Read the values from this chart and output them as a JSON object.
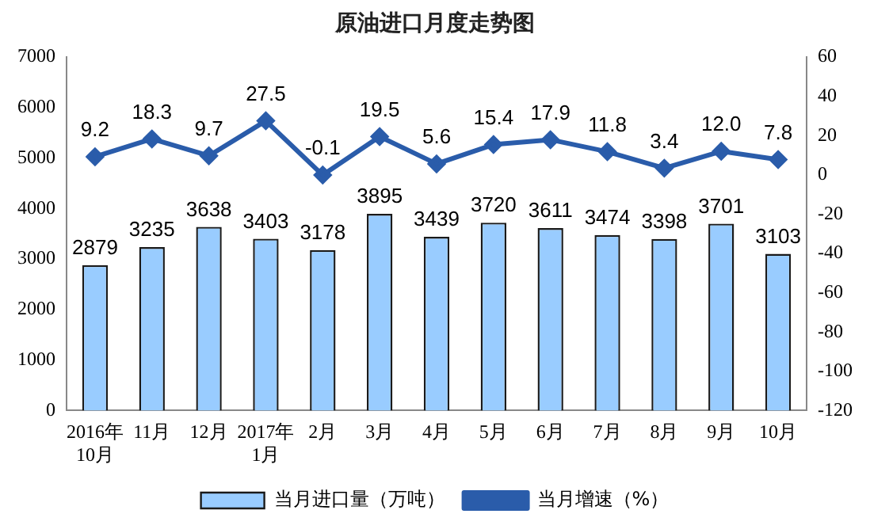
{
  "chart_data": {
    "type": "bar",
    "title": "原油进口月度走势图",
    "categories": [
      "2016年\n10月",
      "11月",
      "12月",
      "2017年\n1月",
      "2月",
      "3月",
      "4月",
      "5月",
      "6月",
      "7月",
      "8月",
      "9月",
      "10月"
    ],
    "series": [
      {
        "name": "当月进口量（万吨）",
        "color": "#99ccff",
        "values": [
          2879,
          3235,
          3638,
          3403,
          3178,
          3895,
          3439,
          3720,
          3611,
          3474,
          3398,
          3701,
          3103
        ],
        "value_labels": [
          "2879",
          "3235",
          "3638",
          "3403",
          "3178",
          "3895",
          "3439",
          "3720",
          "3611",
          "3474",
          "3398",
          "3701",
          "3103"
        ]
      },
      {
        "name": "当月增速（%）",
        "type": "line",
        "axis": "y2",
        "color": "#2a5caa",
        "marker": "diamond",
        "values": [
          9.2,
          18.3,
          9.7,
          27.5,
          -0.1,
          19.5,
          5.6,
          15.4,
          17.9,
          11.8,
          3.4,
          12.0,
          7.8
        ],
        "value_labels": [
          "9.2",
          "18.3",
          "9.7",
          "27.5",
          "-0.1",
          "19.5",
          "5.6",
          "15.4",
          "17.9",
          "11.8",
          "3.4",
          "12.0",
          "7.8"
        ]
      }
    ],
    "ylim": [
      0,
      7000
    ],
    "yticks": [
      0,
      1000,
      2000,
      3000,
      4000,
      5000,
      6000,
      7000
    ],
    "y2lim": [
      -120,
      60
    ],
    "y2ticks": [
      -120,
      -100,
      -80,
      -60,
      -40,
      -20,
      0,
      20,
      40,
      60
    ],
    "grid": false,
    "legend": "bottom"
  }
}
